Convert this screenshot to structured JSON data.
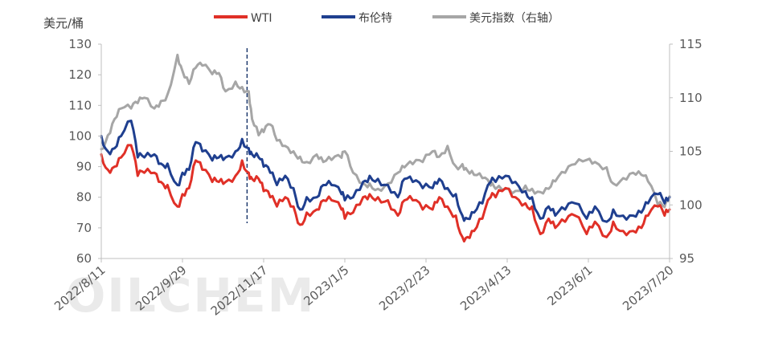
{
  "chart_data": {
    "type": "line",
    "title": "",
    "watermark": "OILCHEM",
    "colors": {
      "WTI": "#e03027",
      "brent": "#1f3f8f",
      "usd": "#a6a6a6",
      "axis": "#bfbfbf",
      "marker": "#1f3a6e"
    },
    "y_left": {
      "unit": "美元/桶",
      "range": [
        60,
        130
      ],
      "ticks": [
        "130",
        "120",
        "110",
        "100",
        "90",
        "80",
        "70",
        "60"
      ]
    },
    "y_right": {
      "range": [
        95,
        115
      ],
      "ticks": [
        "115",
        "110",
        "105",
        "100",
        "95"
      ]
    },
    "x_range": [
      "2022-08-11",
      "2023-07-20"
    ],
    "x_ticks": [
      {
        "date": "2022-08-11",
        "label": "2022/8/11"
      },
      {
        "date": "2022-09-29",
        "label": "2022/9/29"
      },
      {
        "date": "2022-11-17",
        "label": "2022/11/17"
      },
      {
        "date": "2023-01-05",
        "label": "2023/1/5"
      },
      {
        "date": "2023-02-23",
        "label": "2023/2/23"
      },
      {
        "date": "2023-04-13",
        "label": "2023/4/13"
      },
      {
        "date": "2023-06-01",
        "label": "2023/6/1"
      },
      {
        "date": "2023-07-20",
        "label": "2023/7/20"
      }
    ],
    "marker_date": "2022-11-07",
    "series": [
      {
        "name": "WTI",
        "axis": "left",
        "color": "#e03027",
        "points": [
          [
            "2022-08-11",
            94
          ],
          [
            "2022-08-15",
            89
          ],
          [
            "2022-08-19",
            90
          ],
          [
            "2022-08-23",
            93
          ],
          [
            "2022-08-29",
            97
          ],
          [
            "2022-09-02",
            87
          ],
          [
            "2022-09-06",
            88
          ],
          [
            "2022-09-12",
            88
          ],
          [
            "2022-09-16",
            85
          ],
          [
            "2022-09-20",
            84
          ],
          [
            "2022-09-26",
            77
          ],
          [
            "2022-09-29",
            81
          ],
          [
            "2022-10-03",
            83
          ],
          [
            "2022-10-07",
            92
          ],
          [
            "2022-10-11",
            89
          ],
          [
            "2022-10-17",
            85
          ],
          [
            "2022-10-21",
            85
          ],
          [
            "2022-10-25",
            85
          ],
          [
            "2022-10-31",
            87
          ],
          [
            "2022-11-04",
            92
          ],
          [
            "2022-11-08",
            88
          ],
          [
            "2022-11-10",
            86
          ],
          [
            "2022-11-14",
            86
          ],
          [
            "2022-11-17",
            82
          ],
          [
            "2022-11-21",
            80
          ],
          [
            "2022-11-25",
            77
          ],
          [
            "2022-11-30",
            80
          ],
          [
            "2022-12-05",
            77
          ],
          [
            "2022-12-09",
            71
          ],
          [
            "2022-12-13",
            75
          ],
          [
            "2022-12-19",
            76
          ],
          [
            "2022-12-23",
            79
          ],
          [
            "2022-12-28",
            79
          ],
          [
            "2023-01-03",
            76
          ],
          [
            "2023-01-05",
            73
          ],
          [
            "2023-01-10",
            75
          ],
          [
            "2023-01-16",
            80
          ],
          [
            "2023-01-20",
            81
          ],
          [
            "2023-01-25",
            80
          ],
          [
            "2023-01-31",
            79
          ],
          [
            "2023-02-06",
            74
          ],
          [
            "2023-02-10",
            79
          ],
          [
            "2023-02-15",
            79
          ],
          [
            "2023-02-21",
            76
          ],
          [
            "2023-02-27",
            76
          ],
          [
            "2023-03-03",
            80
          ],
          [
            "2023-03-08",
            77
          ],
          [
            "2023-03-13",
            74
          ],
          [
            "2023-03-17",
            67
          ],
          [
            "2023-03-20",
            67
          ],
          [
            "2023-03-24",
            69
          ],
          [
            "2023-03-29",
            73
          ],
          [
            "2023-04-03",
            80
          ],
          [
            "2023-04-06",
            80
          ],
          [
            "2023-04-12",
            83
          ],
          [
            "2023-04-18",
            80
          ],
          [
            "2023-04-24",
            78
          ],
          [
            "2023-04-28",
            77
          ],
          [
            "2023-05-03",
            68
          ],
          [
            "2023-05-08",
            73
          ],
          [
            "2023-05-12",
            70
          ],
          [
            "2023-05-18",
            72
          ],
          [
            "2023-05-24",
            74
          ],
          [
            "2023-05-31",
            68
          ],
          [
            "2023-06-05",
            72
          ],
          [
            "2023-06-12",
            67
          ],
          [
            "2023-06-16",
            72
          ],
          [
            "2023-06-22",
            69
          ],
          [
            "2023-06-28",
            69
          ],
          [
            "2023-07-03",
            70
          ],
          [
            "2023-07-07",
            74
          ],
          [
            "2023-07-13",
            77
          ],
          [
            "2023-07-17",
            74
          ],
          [
            "2023-07-20",
            76
          ]
        ]
      },
      {
        "name": "布伦特",
        "axis": "left",
        "color": "#1f3f8f",
        "points": [
          [
            "2022-08-11",
            100
          ],
          [
            "2022-08-15",
            95
          ],
          [
            "2022-08-19",
            96
          ],
          [
            "2022-08-23",
            100
          ],
          [
            "2022-08-29",
            105
          ],
          [
            "2022-09-02",
            93
          ],
          [
            "2022-09-06",
            93
          ],
          [
            "2022-09-12",
            94
          ],
          [
            "2022-09-16",
            91
          ],
          [
            "2022-09-20",
            91
          ],
          [
            "2022-09-26",
            84
          ],
          [
            "2022-09-29",
            88
          ],
          [
            "2022-10-03",
            89
          ],
          [
            "2022-10-07",
            98
          ],
          [
            "2022-10-11",
            95
          ],
          [
            "2022-10-17",
            92
          ],
          [
            "2022-10-21",
            93
          ],
          [
            "2022-10-25",
            93
          ],
          [
            "2022-10-31",
            95
          ],
          [
            "2022-11-04",
            99
          ],
          [
            "2022-11-08",
            96
          ],
          [
            "2022-11-10",
            94
          ],
          [
            "2022-11-14",
            93
          ],
          [
            "2022-11-17",
            90
          ],
          [
            "2022-11-21",
            88
          ],
          [
            "2022-11-25",
            84
          ],
          [
            "2022-11-30",
            87
          ],
          [
            "2022-12-05",
            83
          ],
          [
            "2022-12-09",
            76
          ],
          [
            "2022-12-13",
            80
          ],
          [
            "2022-12-19",
            80
          ],
          [
            "2022-12-23",
            84
          ],
          [
            "2022-12-28",
            84
          ],
          [
            "2023-01-03",
            81
          ],
          [
            "2023-01-05",
            79
          ],
          [
            "2023-01-10",
            80
          ],
          [
            "2023-01-16",
            85
          ],
          [
            "2023-01-20",
            87
          ],
          [
            "2023-01-25",
            86
          ],
          [
            "2023-01-31",
            84
          ],
          [
            "2023-02-06",
            80
          ],
          [
            "2023-02-10",
            86
          ],
          [
            "2023-02-15",
            85
          ],
          [
            "2023-02-21",
            83
          ],
          [
            "2023-02-27",
            83
          ],
          [
            "2023-03-03",
            86
          ],
          [
            "2023-03-08",
            83
          ],
          [
            "2023-03-13",
            81
          ],
          [
            "2023-03-17",
            74
          ],
          [
            "2023-03-20",
            73
          ],
          [
            "2023-03-24",
            75
          ],
          [
            "2023-03-29",
            78
          ],
          [
            "2023-04-03",
            85
          ],
          [
            "2023-04-06",
            85
          ],
          [
            "2023-04-12",
            87
          ],
          [
            "2023-04-18",
            85
          ],
          [
            "2023-04-24",
            82
          ],
          [
            "2023-04-28",
            80
          ],
          [
            "2023-05-03",
            73
          ],
          [
            "2023-05-08",
            77
          ],
          [
            "2023-05-12",
            74
          ],
          [
            "2023-05-18",
            76
          ],
          [
            "2023-05-24",
            78
          ],
          [
            "2023-05-31",
            73
          ],
          [
            "2023-06-05",
            77
          ],
          [
            "2023-06-12",
            72
          ],
          [
            "2023-06-16",
            76
          ],
          [
            "2023-06-22",
            74
          ],
          [
            "2023-06-28",
            74
          ],
          [
            "2023-07-03",
            75
          ],
          [
            "2023-07-07",
            78
          ],
          [
            "2023-07-13",
            81
          ],
          [
            "2023-07-17",
            78
          ],
          [
            "2023-07-20",
            80
          ]
        ]
      },
      {
        "name": "美元指数（右轴）",
        "axis": "right",
        "color": "#a6a6a6",
        "points": [
          [
            "2022-08-11",
            105.2
          ],
          [
            "2022-08-15",
            106.5
          ],
          [
            "2022-08-19",
            108
          ],
          [
            "2022-08-23",
            109
          ],
          [
            "2022-08-29",
            109
          ],
          [
            "2022-09-02",
            109.5
          ],
          [
            "2022-09-06",
            110
          ],
          [
            "2022-09-12",
            109
          ],
          [
            "2022-09-16",
            109.7
          ],
          [
            "2022-09-20",
            110.3
          ],
          [
            "2022-09-26",
            114
          ],
          [
            "2022-09-29",
            112.5
          ],
          [
            "2022-10-03",
            111.3
          ],
          [
            "2022-10-07",
            112.8
          ],
          [
            "2022-10-11",
            113
          ],
          [
            "2022-10-17",
            112.2
          ],
          [
            "2022-10-21",
            112.3
          ],
          [
            "2022-10-25",
            110.6
          ],
          [
            "2022-10-31",
            111.5
          ],
          [
            "2022-11-04",
            111
          ],
          [
            "2022-11-08",
            110.6
          ],
          [
            "2022-11-10",
            108
          ],
          [
            "2022-11-14",
            106.5
          ],
          [
            "2022-11-17",
            106.8
          ],
          [
            "2022-11-21",
            107.5
          ],
          [
            "2022-11-25",
            106
          ],
          [
            "2022-11-30",
            105.5
          ],
          [
            "2022-12-05",
            105
          ],
          [
            "2022-12-09",
            104.5
          ],
          [
            "2022-12-13",
            104
          ],
          [
            "2022-12-19",
            104.7
          ],
          [
            "2022-12-23",
            104
          ],
          [
            "2022-12-28",
            104.2
          ],
          [
            "2023-01-03",
            104.4
          ],
          [
            "2023-01-05",
            105
          ],
          [
            "2023-01-10",
            103
          ],
          [
            "2023-01-16",
            102
          ],
          [
            "2023-01-20",
            102
          ],
          [
            "2023-01-25",
            101.5
          ],
          [
            "2023-01-31",
            102
          ],
          [
            "2023-02-06",
            103
          ],
          [
            "2023-02-10",
            103.5
          ],
          [
            "2023-02-15",
            103.8
          ],
          [
            "2023-02-21",
            104
          ],
          [
            "2023-02-27",
            105
          ],
          [
            "2023-03-03",
            104.5
          ],
          [
            "2023-03-08",
            105.5
          ],
          [
            "2023-03-13",
            103.6
          ],
          [
            "2023-03-17",
            103.8
          ],
          [
            "2023-03-20",
            103.2
          ],
          [
            "2023-03-24",
            102.8
          ],
          [
            "2023-03-29",
            102.5
          ],
          [
            "2023-04-03",
            101.8
          ],
          [
            "2023-04-06",
            101.5
          ],
          [
            "2023-04-12",
            101.5
          ],
          [
            "2023-04-18",
            101.3
          ],
          [
            "2023-04-24",
            101.8
          ],
          [
            "2023-04-28",
            101.5
          ],
          [
            "2023-05-03",
            101.2
          ],
          [
            "2023-05-08",
            101.5
          ],
          [
            "2023-05-12",
            102.2
          ],
          [
            "2023-05-18",
            103
          ],
          [
            "2023-05-24",
            103.8
          ],
          [
            "2023-05-31",
            104.2
          ],
          [
            "2023-06-05",
            104
          ],
          [
            "2023-06-12",
            103.5
          ],
          [
            "2023-06-16",
            102
          ],
          [
            "2023-06-22",
            102.5
          ],
          [
            "2023-06-28",
            103
          ],
          [
            "2023-07-03",
            102.8
          ],
          [
            "2023-07-07",
            102.2
          ],
          [
            "2023-07-13",
            100
          ],
          [
            "2023-07-17",
            99.8
          ],
          [
            "2023-07-20",
            100.8
          ]
        ]
      }
    ]
  }
}
